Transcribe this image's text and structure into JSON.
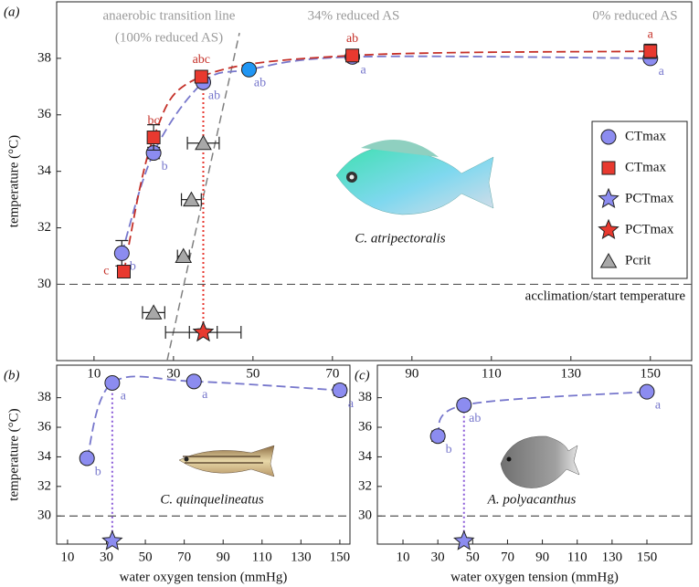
{
  "chart_data": [
    {
      "type": "scatter",
      "panel_label": "(a)",
      "xlim": [
        0.6,
        160.4
      ],
      "ylim": [
        27.3,
        40
      ],
      "xticks": [
        10,
        30,
        50,
        70,
        90,
        110,
        130,
        150
      ],
      "yticks": [
        30,
        32,
        34,
        36,
        38
      ],
      "ylabel": "temperature (°C)",
      "hline": 30,
      "hline_label": "acclimation/start temperature",
      "annotations": [
        "anaerobic transition line",
        "(100% reduced AS)",
        "34% reduced AS",
        "0% reduced AS"
      ],
      "species": "C. atripectoralis",
      "reference_line": {
        "x": [
          28.4,
          46.6
        ],
        "y": [
          27.3,
          38.9
        ],
        "color": "#808080"
      },
      "legend": "right",
      "series": [
        {
          "name": "CTmax",
          "marker": "circle",
          "color": "#8c8cf0",
          "fit": true,
          "colors": [
            "#8c8cf0",
            "#8c8cf0",
            "#8c8cf0",
            "#2196f3",
            "#8c8cf0",
            "#8c8cf0"
          ],
          "x": [
            17,
            25,
            37.5,
            49,
            75,
            150
          ],
          "values": [
            31.1,
            34.65,
            37.15,
            37.6,
            38.05,
            38.0
          ],
          "yerr": [
            0.45,
            0.2,
            0.15,
            0.1,
            0.15,
            0.15
          ],
          "letters": [
            "b",
            "b",
            "ab",
            "ab",
            "a",
            "a"
          ]
        },
        {
          "name": "CTmax",
          "marker": "square",
          "color": "#e8392f",
          "fit": true,
          "x": [
            17.5,
            25,
            37,
            75,
            150
          ],
          "values": [
            30.45,
            35.2,
            37.35,
            38.1,
            38.25
          ],
          "yerr": [
            0.1,
            0.45,
            0.15,
            0.15,
            0.25
          ],
          "letters": [
            "c",
            "bc",
            "abc",
            "ab",
            "a"
          ]
        },
        {
          "name": "PCTmax",
          "marker": "star",
          "color": "#8c8cf0",
          "x": [
            37.5
          ],
          "values": [
            28.3
          ],
          "xerr": [
            9.5
          ]
        },
        {
          "name": "PCTmax",
          "marker": "star",
          "color": "#e8392f",
          "x": [
            37.5
          ],
          "values": [
            28.3
          ],
          "xerr": [
            3.5
          ]
        },
        {
          "name": "Pcrit",
          "marker": "triangle",
          "color": "#a8a8a8",
          "x": [
            25,
            32.5,
            34.5,
            37.5
          ],
          "values": [
            29,
            31,
            33,
            35
          ],
          "xerr": [
            2.8,
            1.5,
            2.5,
            4
          ]
        }
      ]
    },
    {
      "type": "scatter",
      "panel_label": "(b)",
      "xlim": [
        4.4,
        155.2
      ],
      "ylim": [
        28.1,
        40.2
      ],
      "xticks": [
        10,
        30,
        50,
        70,
        90,
        110,
        130,
        150
      ],
      "yticks": [
        30,
        32,
        34,
        36,
        38
      ],
      "ylabel": "temperature (°C)",
      "xlabel": "water oxygen tension (mmHg)",
      "hline": 30,
      "species": "C. quinquelineatus",
      "series": [
        {
          "name": "CTmax",
          "marker": "circle",
          "color": "#8c8cf0",
          "fit": true,
          "x": [
            20,
            33,
            75,
            150
          ],
          "values": [
            33.9,
            39.0,
            39.1,
            38.5
          ],
          "yerr": [
            0.3,
            0.2,
            0.15,
            0.35
          ],
          "letters": [
            "b",
            "a",
            "a",
            "a"
          ]
        },
        {
          "name": "PCTmax",
          "marker": "star",
          "color": "#8c8cf0",
          "x": [
            33
          ],
          "values": [
            28.3
          ]
        }
      ]
    },
    {
      "type": "scatter",
      "panel_label": "(c)",
      "xlim": [
        -4.7,
        175.7
      ],
      "ylim": [
        28.1,
        40.2
      ],
      "xticks": [
        10,
        30,
        50,
        70,
        90,
        110,
        130,
        150
      ],
      "yticks": [
        30,
        32,
        34,
        36,
        38
      ],
      "xlabel": "water oxygen tension (mmHg)",
      "hline": 30,
      "species": "A. polyacanthus",
      "series": [
        {
          "name": "CTmax",
          "marker": "circle",
          "color": "#8c8cf0",
          "fit": true,
          "x": [
            30,
            45,
            150
          ],
          "values": [
            35.4,
            37.5,
            38.4
          ],
          "yerr": [
            0.35,
            0.3,
            0.1
          ],
          "letters": [
            "b",
            "ab",
            "a"
          ]
        },
        {
          "name": "PCTmax",
          "marker": "star",
          "color": "#8c8cf0",
          "x": [
            45
          ],
          "values": [
            28.3
          ]
        }
      ]
    }
  ]
}
